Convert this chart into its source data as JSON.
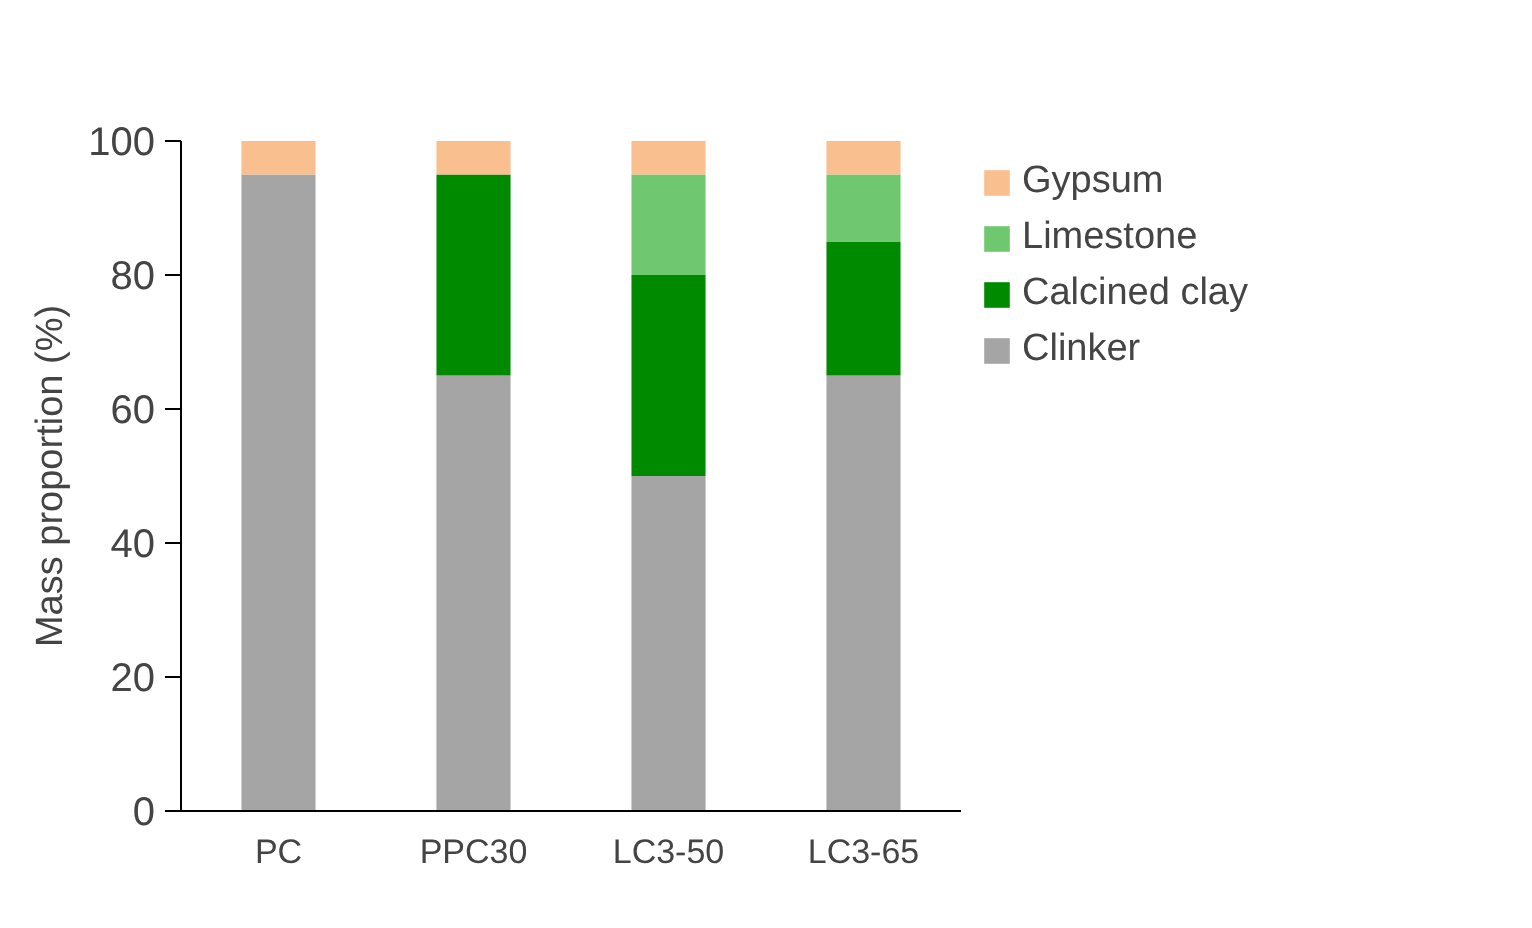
{
  "chart_data": {
    "type": "bar",
    "stacked": true,
    "ylabel": "Mass proportion (%)",
    "categories": [
      "PC",
      "PPC30",
      "LC3-50",
      "LC3-65"
    ],
    "series": [
      {
        "name": "Clinker",
        "color": "#a5a5a5",
        "values": [
          95,
          65,
          50,
          65
        ]
      },
      {
        "name": "Calcined clay",
        "color": "#008a00",
        "values": [
          0,
          30,
          30,
          20
        ]
      },
      {
        "name": "Limestone",
        "color": "#6fc86f",
        "values": [
          0,
          0,
          15,
          10
        ]
      },
      {
        "name": "Gypsum",
        "color": "#f9bf8f",
        "values": [
          5,
          5,
          5,
          5
        ]
      }
    ],
    "ylim": [
      0,
      100
    ],
    "yticks": [
      0,
      20,
      40,
      60,
      80,
      100
    ],
    "grid": false,
    "legend": "top right"
  }
}
